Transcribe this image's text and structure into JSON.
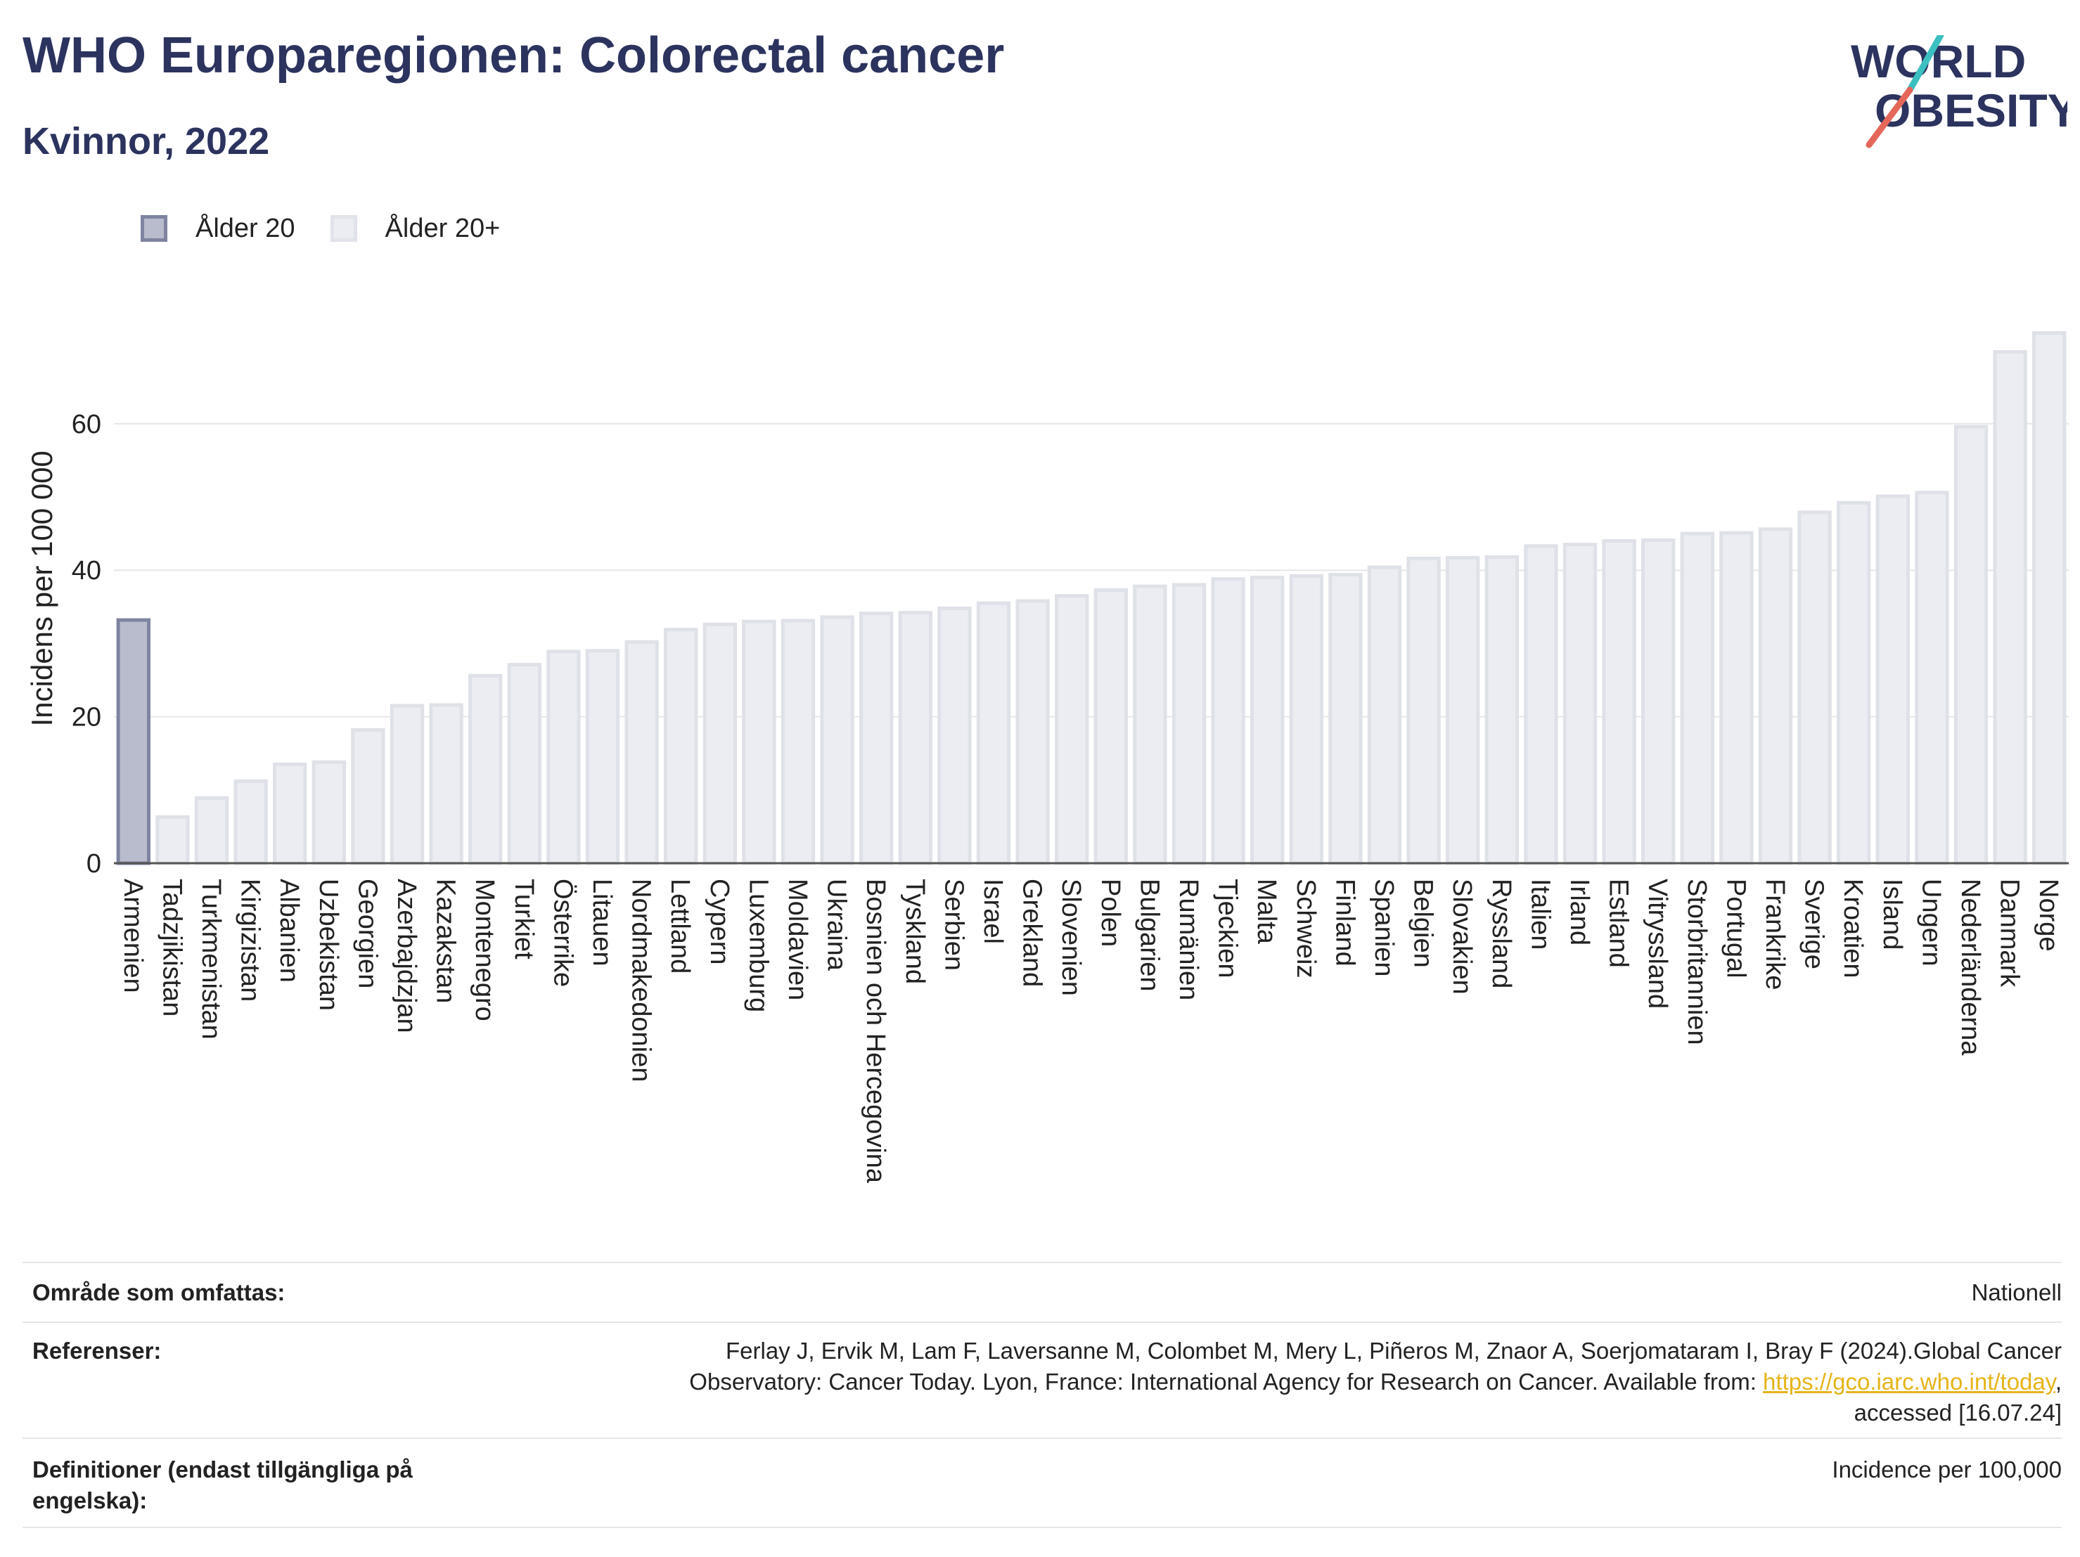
{
  "title": "WHO Europaregionen: Colorectal cancer",
  "subtitle": "Kvinnor, 2022",
  "logo": {
    "line1": "WORLD",
    "line2": "OBESITY"
  },
  "legend": [
    {
      "label": "Ålder 20",
      "color": "#b9bccd"
    },
    {
      "label": "Ålder 20+",
      "color": "#ecedf2"
    }
  ],
  "chart_data": {
    "type": "bar",
    "ylabel": "Incidens per 100 000",
    "xlabel": "",
    "ylim": [
      0,
      75
    ],
    "yticks": [
      0,
      20,
      40,
      60
    ],
    "grid": true,
    "legend_position": "top-left",
    "categories": [
      "Armenien",
      "Tadzjikistan",
      "Turkmenistan",
      "Kirgizistan",
      "Albanien",
      "Uzbekistan",
      "Georgien",
      "Azerbajdzjan",
      "Kazakstan",
      "Montenegro",
      "Turkiet",
      "Österrike",
      "Litauen",
      "Nordmakedonien",
      "Lettland",
      "Cypern",
      "Luxemburg",
      "Moldavien",
      "Ukraina",
      "Bosnien och Hercegovina",
      "Tyskland",
      "Serbien",
      "Israel",
      "Grekland",
      "Slovenien",
      "Polen",
      "Bulgarien",
      "Rumänien",
      "Tjeckien",
      "Malta",
      "Schweiz",
      "Finland",
      "Spanien",
      "Belgien",
      "Slovakien",
      "Ryssland",
      "Italien",
      "Irland",
      "Estland",
      "Vitryssland",
      "Storbritannien",
      "Portugal",
      "Frankrike",
      "Sverige",
      "Kroatien",
      "Island",
      "Ungern",
      "Nederländerna",
      "Danmark",
      "Norge"
    ],
    "values": [
      33.2,
      6.3,
      8.9,
      11.2,
      13.5,
      13.8,
      18.2,
      21.5,
      21.6,
      25.6,
      27.1,
      28.9,
      29.0,
      30.2,
      31.9,
      32.6,
      33.0,
      33.1,
      33.6,
      34.1,
      34.2,
      34.8,
      35.5,
      35.8,
      36.5,
      37.3,
      37.8,
      38.0,
      38.8,
      39.0,
      39.2,
      39.4,
      40.4,
      41.6,
      41.7,
      41.8,
      43.3,
      43.5,
      44.0,
      44.1,
      45.0,
      45.1,
      45.6,
      47.9,
      49.2,
      50.1,
      50.6,
      59.6,
      69.8,
      72.4
    ],
    "series_groups": [
      "Ålder 20",
      "Ålder 20+",
      "Ålder 20+",
      "Ålder 20+",
      "Ålder 20+",
      "Ålder 20+",
      "Ålder 20+",
      "Ålder 20+",
      "Ålder 20+",
      "Ålder 20+",
      "Ålder 20+",
      "Ålder 20+",
      "Ålder 20+",
      "Ålder 20+",
      "Ålder 20+",
      "Ålder 20+",
      "Ålder 20+",
      "Ålder 20+",
      "Ålder 20+",
      "Ålder 20+",
      "Ålder 20+",
      "Ålder 20+",
      "Ålder 20+",
      "Ålder 20+",
      "Ålder 20+",
      "Ålder 20+",
      "Ålder 20+",
      "Ålder 20+",
      "Ålder 20+",
      "Ålder 20+",
      "Ålder 20+",
      "Ålder 20+",
      "Ålder 20+",
      "Ålder 20+",
      "Ålder 20+",
      "Ålder 20+",
      "Ålder 20+",
      "Ålder 20+",
      "Ålder 20+",
      "Ålder 20+",
      "Ålder 20+",
      "Ålder 20+",
      "Ålder 20+",
      "Ålder 20+",
      "Ålder 20+",
      "Ålder 20+",
      "Ålder 20+",
      "Ålder 20+",
      "Ålder 20+",
      "Ålder 20+"
    ]
  },
  "meta": {
    "coverage_label": "Område som omfattas:",
    "coverage_value": "Nationell",
    "references_label": "Referenser:",
    "references_line1": "Ferlay J, Ervik M, Lam F, Laversanne M, Colombet M, Mery L, Piñeros M, Znaor A, Soerjomataram I, Bray F (2024).Global Cancer",
    "references_line2_pre": "Observatory: Cancer Today. Lyon, France: International Agency for Research on Cancer. Available from: ",
    "references_link": "https://gco.iarc.who.int/today",
    "references_line2_post": ",",
    "references_line3": "accessed [16.07.24]",
    "definitions_label_line1": "Definitioner (endast tillgängliga på",
    "definitions_label_line2": "engelska):",
    "definitions_value": "Incidence per 100,000"
  }
}
